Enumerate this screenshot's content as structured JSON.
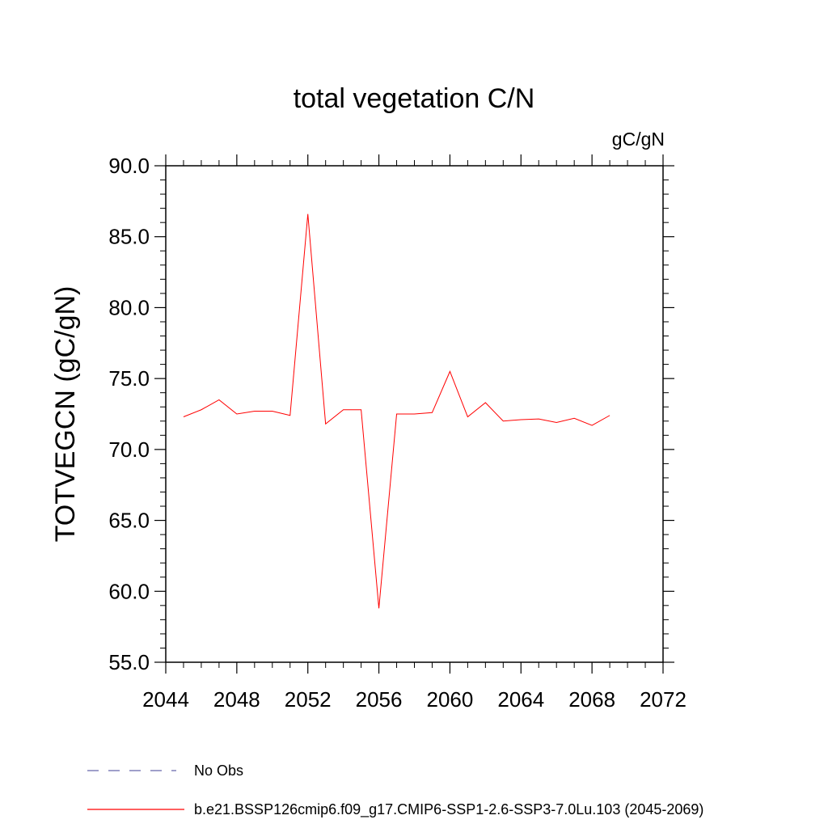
{
  "chart_data": {
    "type": "line",
    "title": "total vegetation C/N",
    "units_label": "gC/gN",
    "ylabel": "TOTVEGCN  (gC/gN)",
    "xlabel": "",
    "xlim": [
      2044,
      2072
    ],
    "ylim": [
      55.0,
      90.0
    ],
    "x_ticks": [
      "2044",
      "2048",
      "2052",
      "2056",
      "2060",
      "2064",
      "2068",
      "2072"
    ],
    "y_ticks": [
      "55.0",
      "60.0",
      "65.0",
      "70.0",
      "75.0",
      "80.0",
      "85.0",
      "90.0"
    ],
    "grid": false,
    "legend_position": "bottom-left",
    "series": [
      {
        "name": "b.e21.BSSP126cmip6.f09_g17.CMIP6-SSP1-2.6-SSP3-7.0Lu.103 (2045-2069)",
        "color": "#ff0000",
        "line_style": "solid",
        "x": [
          2045,
          2046,
          2047,
          2048,
          2049,
          2050,
          2051,
          2052,
          2053,
          2054,
          2055,
          2056,
          2057,
          2058,
          2059,
          2060,
          2061,
          2062,
          2063,
          2064,
          2065,
          2066,
          2067,
          2068,
          2069
        ],
        "values": [
          72.3,
          72.8,
          73.5,
          72.5,
          72.7,
          72.7,
          72.4,
          86.6,
          71.8,
          72.8,
          72.8,
          58.8,
          72.5,
          72.5,
          72.6,
          75.5,
          72.3,
          73.3,
          72.0,
          72.1,
          72.15,
          71.9,
          72.2,
          71.7,
          72.4
        ]
      }
    ],
    "legend": [
      {
        "label": "No Obs",
        "color": "#6666aa",
        "line_style": "dashed"
      },
      {
        "label": "b.e21.BSSP126cmip6.f09_g17.CMIP6-SSP1-2.6-SSP3-7.0Lu.103 (2045-2069)",
        "color": "#ff0000",
        "line_style": "solid"
      }
    ]
  }
}
